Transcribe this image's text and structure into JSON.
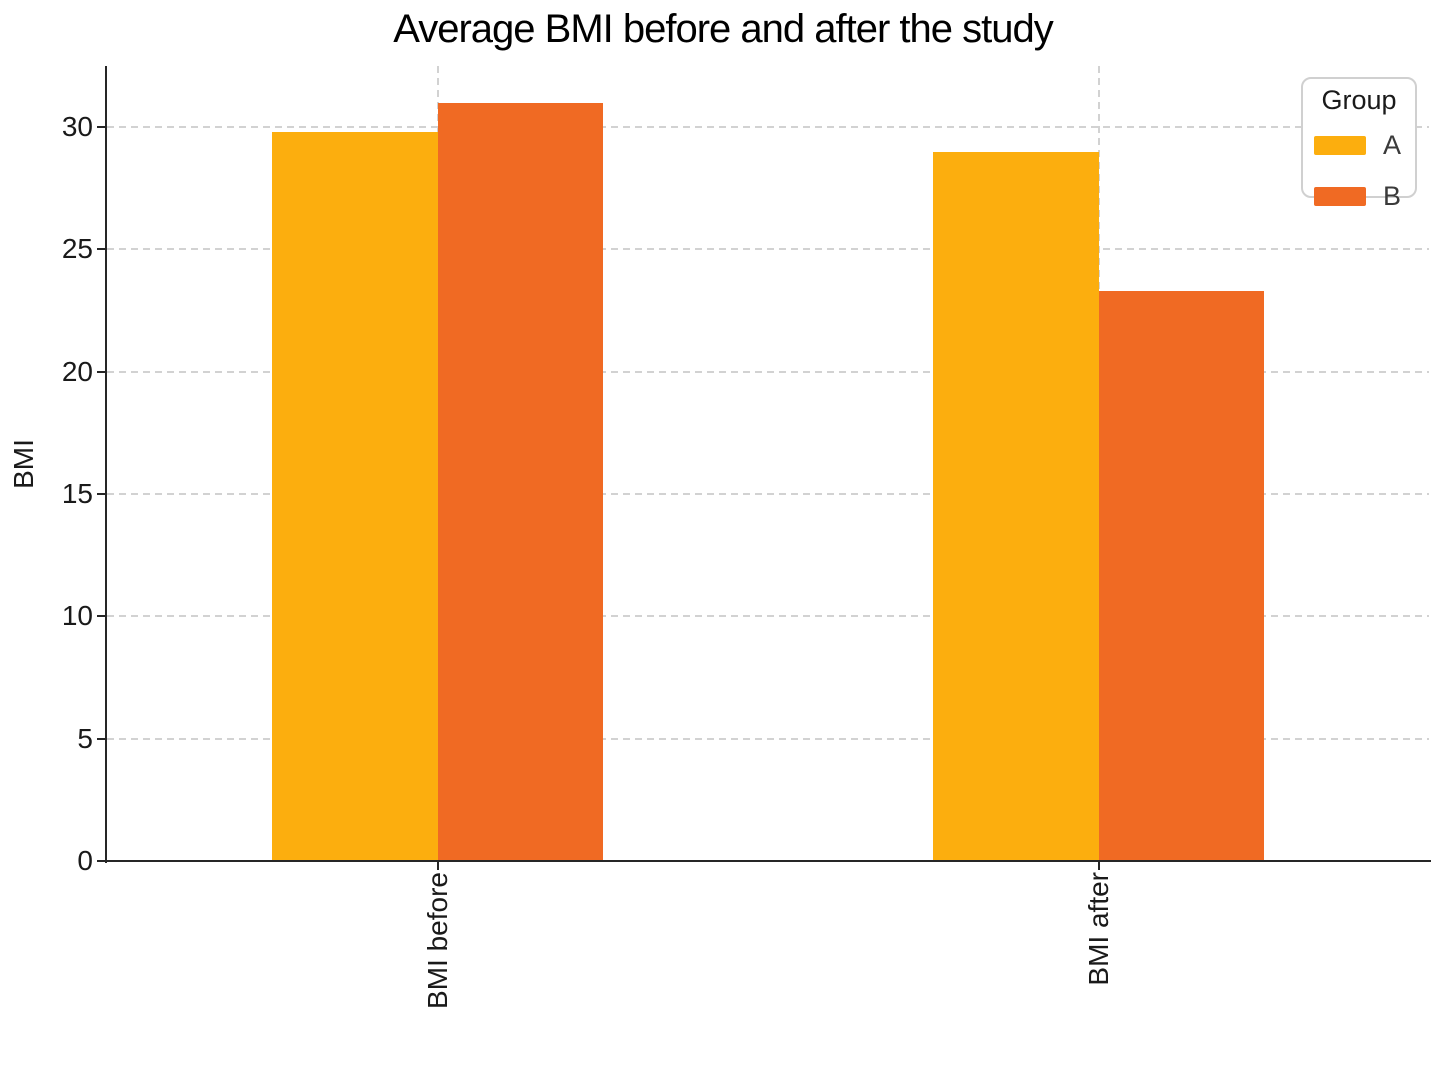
{
  "chart_data": {
    "type": "bar",
    "title": "Average BMI before and after the study",
    "categories": [
      "BMI before",
      "BMI after"
    ],
    "series": [
      {
        "name": "A",
        "color": "#FCAE0E",
        "values": [
          29.8,
          29.0
        ]
      },
      {
        "name": "B",
        "color": "#F06A23",
        "values": [
          31.0,
          23.3
        ]
      }
    ],
    "xlabel": "",
    "ylabel": "BMI",
    "ylim": [
      0,
      32.5
    ],
    "yticks": [
      0,
      5,
      10,
      15,
      20,
      25,
      30
    ],
    "grid": "dashed",
    "legend": {
      "title": "Group",
      "position": "top-right"
    }
  }
}
